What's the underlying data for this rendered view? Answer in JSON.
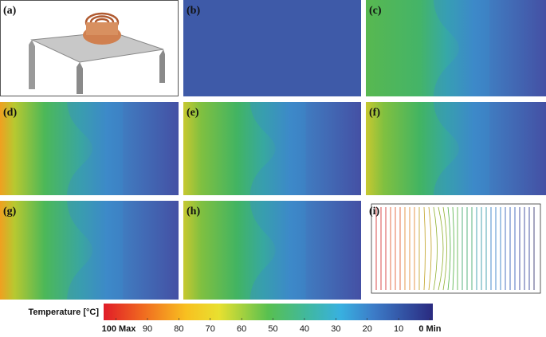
{
  "panels": [
    "(a)",
    "(b)",
    "(c)",
    "(d)",
    "(e)",
    "(f)",
    "(g)",
    "(h)",
    "(i)"
  ],
  "colorbar": {
    "title": "Temperature [°C]",
    "ticks": [
      {
        "value": 100,
        "label": "100 Max"
      },
      90,
      80,
      70,
      60,
      50,
      40,
      30,
      20,
      10,
      {
        "value": 0,
        "label": "0 Min"
      }
    ]
  }
}
